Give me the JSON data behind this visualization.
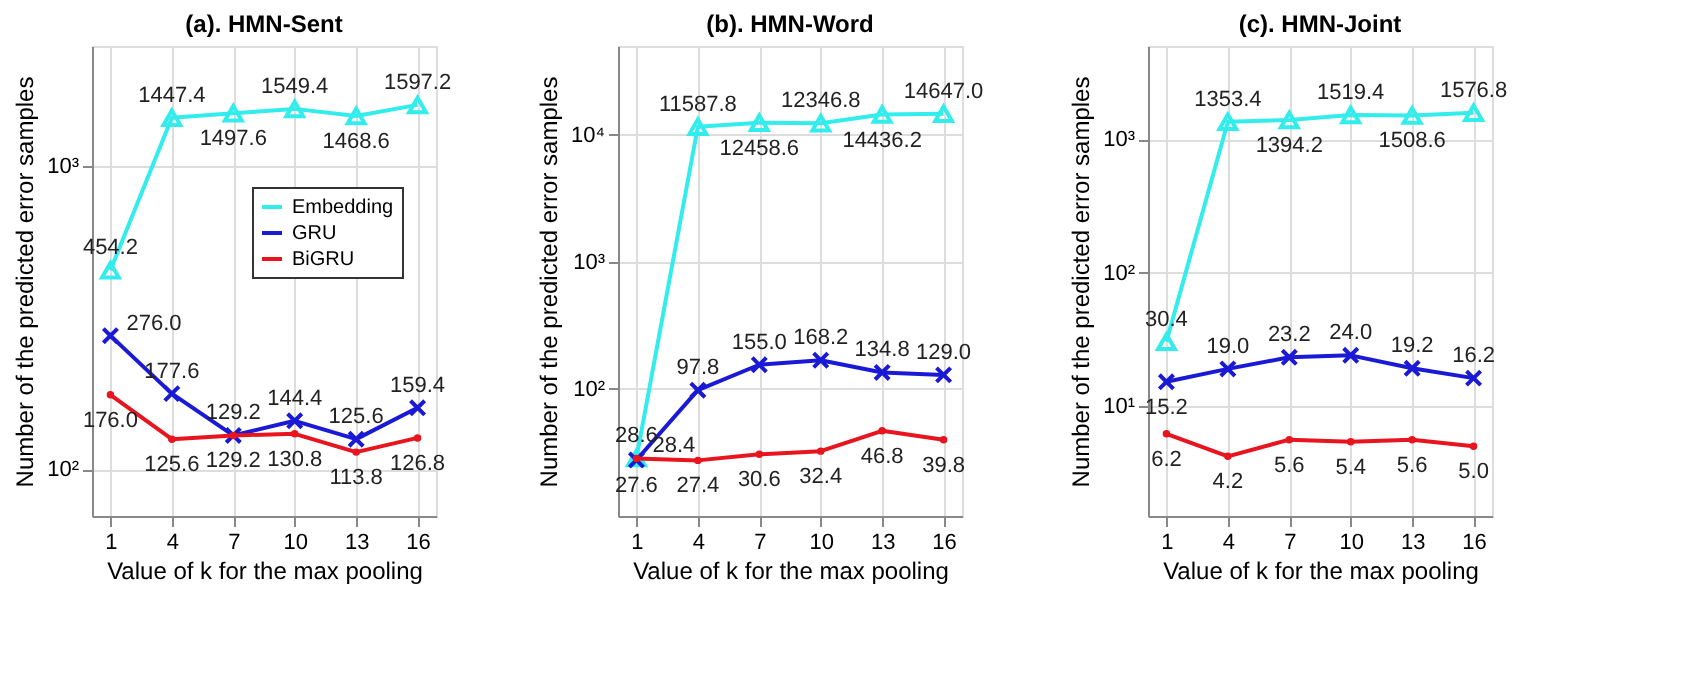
{
  "chart_data": [
    {
      "type": "line",
      "title": "(a). HMN-Sent",
      "xlabel": "Value of k for the max pooling",
      "ylabel": "Number of the predicted error samples",
      "x": [
        1,
        4,
        7,
        10,
        13,
        16
      ],
      "xlim": [
        0.1,
        16.9
      ],
      "xticks": [
        1,
        4,
        7,
        10,
        13,
        16
      ],
      "log": "y",
      "ylim": [
        70,
        2500
      ],
      "yticks": [
        {
          "value": 100,
          "label": "10²"
        },
        {
          "value": 1000,
          "label": "10³"
        }
      ],
      "grid": true,
      "legend": "right",
      "series": [
        {
          "name": "Embedding",
          "color": "#33ecec",
          "marker": "triangle",
          "values": [
            454.2,
            1447.4,
            1497.6,
            1549.4,
            1468.6,
            1597.2
          ],
          "value_labels": [
            "454.2",
            "1447.4",
            "1497.6",
            "1549.4",
            "1468.6",
            "1597.2"
          ]
        },
        {
          "name": "GRU",
          "color": "#1a1ad6",
          "marker": "cross",
          "values": [
            276.0,
            177.6,
            129.2,
            144.4,
            125.6,
            159.4
          ],
          "value_labels": [
            "276.0",
            "177.6",
            "129.2",
            "144.4",
            "125.6",
            "159.4"
          ]
        },
        {
          "name": "BiGRU",
          "color": "#e8141e",
          "marker": "circle",
          "values": [
            176.0,
            125.6,
            129.2,
            130.8,
            113.8,
            126.8
          ],
          "value_labels": [
            "176.0",
            "125.6",
            "129.2",
            "130.8",
            "113.8",
            "126.8"
          ]
        }
      ]
    },
    {
      "type": "line",
      "title": "(b). HMN-Word",
      "xlabel": "Value of k for the max pooling",
      "ylabel": "Number of the predicted error samples",
      "x": [
        1,
        4,
        7,
        10,
        13,
        16
      ],
      "xlim": [
        0.1,
        16.9
      ],
      "xticks": [
        1,
        4,
        7,
        10,
        13,
        16
      ],
      "log": "y",
      "ylim": [
        10,
        50000
      ],
      "yticks": [
        {
          "value": 100,
          "label": "10²"
        },
        {
          "value": 1000,
          "label": "10³"
        },
        {
          "value": 10000,
          "label": "10⁴"
        }
      ],
      "grid": true,
      "legend": "right",
      "series": [
        {
          "name": "Embedding",
          "color": "#33ecec",
          "marker": "triangle",
          "values": [
            28.6,
            11587.8,
            12458.6,
            12346.8,
            14436.2,
            14647.0
          ],
          "value_labels": [
            "28.6",
            "11587.8",
            "12458.6",
            "12346.8",
            "14436.2",
            "14647.0"
          ]
        },
        {
          "name": "GRU",
          "color": "#1a1ad6",
          "marker": "cross",
          "values": [
            27.6,
            97.8,
            155.0,
            168.2,
            134.8,
            129.0
          ],
          "value_labels": [
            "27.6",
            "97.8",
            "155.0",
            "168.2",
            "134.8",
            "129.0"
          ]
        },
        {
          "name": "BiGRU",
          "color": "#e8141e",
          "marker": "circle",
          "values": [
            28.4,
            27.4,
            30.6,
            32.4,
            46.8,
            39.8
          ],
          "value_labels": [
            "28.4",
            "27.4",
            "30.6",
            "32.4",
            "46.8",
            "39.8"
          ]
        }
      ]
    },
    {
      "type": "line",
      "title": "(c). HMN-Joint",
      "xlabel": "Value of k for the max pooling",
      "ylabel": "Number of the predicted error samples",
      "x": [
        1,
        4,
        7,
        10,
        13,
        16
      ],
      "xlim": [
        0.1,
        16.9
      ],
      "xticks": [
        1,
        4,
        7,
        10,
        13,
        16
      ],
      "log": "y",
      "ylim": [
        1.5,
        5000
      ],
      "yticks": [
        {
          "value": 10,
          "label": "10¹"
        },
        {
          "value": 100,
          "label": "10²"
        },
        {
          "value": 1000,
          "label": "10³"
        }
      ],
      "grid": true,
      "legend": "right",
      "series": [
        {
          "name": "Embedding",
          "color": "#33ecec",
          "marker": "triangle",
          "values": [
            30.4,
            1353.4,
            1394.2,
            1519.4,
            1508.6,
            1576.8
          ],
          "value_labels": [
            "30.4",
            "1353.4",
            "1394.2",
            "1519.4",
            "1508.6",
            "1576.8"
          ]
        },
        {
          "name": "GRU",
          "color": "#1a1ad6",
          "marker": "cross",
          "values": [
            15.2,
            19.0,
            23.2,
            24.0,
            19.2,
            16.2
          ],
          "value_labels": [
            "15.2",
            "19.0",
            "23.2",
            "24.0",
            "19.2",
            "16.2"
          ]
        },
        {
          "name": "BiGRU",
          "color": "#e8141e",
          "marker": "circle",
          "values": [
            6.2,
            4.2,
            5.6,
            5.4,
            5.6,
            5.0
          ],
          "value_labels": [
            "6.2",
            "4.2",
            "5.6",
            "5.4",
            "5.6",
            "5.0"
          ]
        }
      ]
    }
  ]
}
